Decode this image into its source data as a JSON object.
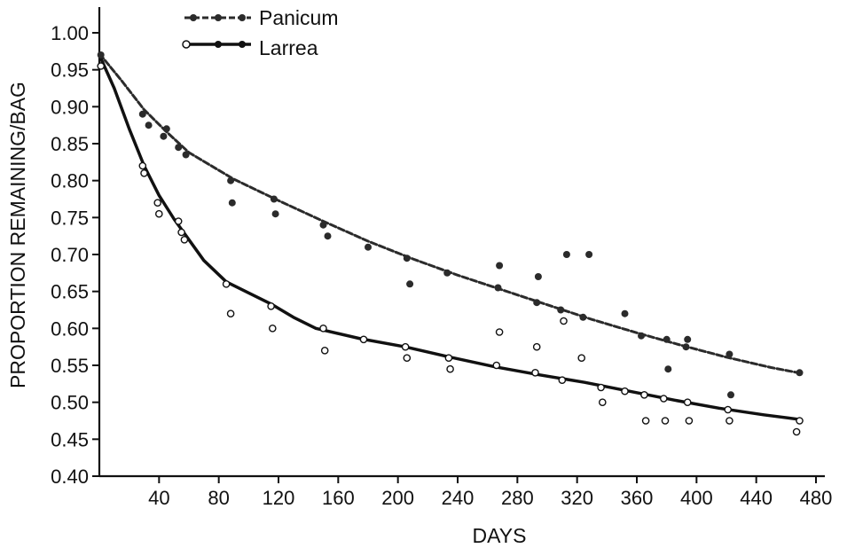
{
  "chart_data": {
    "type": "scatter",
    "title": "",
    "xlabel": "DAYS",
    "ylabel": "PROPORTION REMAINING/BAG",
    "xlim": [
      0,
      480
    ],
    "ylim": [
      0.4,
      1.0
    ],
    "x_ticks": [
      40,
      80,
      120,
      160,
      200,
      240,
      280,
      320,
      360,
      400,
      440,
      480
    ],
    "y_ticks": [
      0.4,
      0.45,
      0.5,
      0.55,
      0.6,
      0.65,
      0.7,
      0.75,
      0.8,
      0.85,
      0.9,
      0.95,
      1.0
    ],
    "y_tick_labels": [
      "0.40",
      "0.45",
      "0.50",
      "0.55",
      "0.60",
      "0.65",
      "0.70",
      "0.75",
      "0.80",
      "0.85",
      "0.90",
      "0.95",
      "1.00"
    ],
    "grid": false,
    "legend_position": "top-left",
    "series": [
      {
        "name": "Panicum",
        "line_style": "dashed",
        "color": "#2b2b2b",
        "marker": "filled-circle",
        "fit_x": [
          0,
          15,
          30,
          45,
          60,
          90,
          120,
          150,
          180,
          210,
          240,
          270,
          300,
          330,
          360,
          390,
          420,
          450,
          468
        ],
        "fit_y": [
          0.972,
          0.935,
          0.896,
          0.866,
          0.838,
          0.802,
          0.773,
          0.745,
          0.718,
          0.694,
          0.672,
          0.652,
          0.632,
          0.612,
          0.594,
          0.577,
          0.561,
          0.547,
          0.54
        ],
        "points": [
          {
            "x": 1,
            "y": 0.97
          },
          {
            "x": 29,
            "y": 0.89
          },
          {
            "x": 33,
            "y": 0.875
          },
          {
            "x": 43,
            "y": 0.86
          },
          {
            "x": 45,
            "y": 0.87
          },
          {
            "x": 53,
            "y": 0.845
          },
          {
            "x": 58,
            "y": 0.835
          },
          {
            "x": 88,
            "y": 0.8
          },
          {
            "x": 89,
            "y": 0.77
          },
          {
            "x": 117,
            "y": 0.775
          },
          {
            "x": 118,
            "y": 0.755
          },
          {
            "x": 150,
            "y": 0.74
          },
          {
            "x": 153,
            "y": 0.725
          },
          {
            "x": 180,
            "y": 0.71
          },
          {
            "x": 206,
            "y": 0.695
          },
          {
            "x": 208,
            "y": 0.66
          },
          {
            "x": 233,
            "y": 0.675
          },
          {
            "x": 267,
            "y": 0.655
          },
          {
            "x": 268,
            "y": 0.685
          },
          {
            "x": 293,
            "y": 0.635
          },
          {
            "x": 294,
            "y": 0.67
          },
          {
            "x": 309,
            "y": 0.625
          },
          {
            "x": 313,
            "y": 0.7
          },
          {
            "x": 324,
            "y": 0.615
          },
          {
            "x": 328,
            "y": 0.7
          },
          {
            "x": 352,
            "y": 0.62
          },
          {
            "x": 363,
            "y": 0.59
          },
          {
            "x": 380,
            "y": 0.585
          },
          {
            "x": 381,
            "y": 0.545
          },
          {
            "x": 393,
            "y": 0.575
          },
          {
            "x": 394,
            "y": 0.585
          },
          {
            "x": 422,
            "y": 0.565
          },
          {
            "x": 423,
            "y": 0.51
          },
          {
            "x": 469,
            "y": 0.54
          }
        ]
      },
      {
        "name": "Larrea",
        "line_style": "solid",
        "color": "#111111",
        "marker": "open-circle",
        "fit_x": [
          0,
          10,
          20,
          30,
          40,
          50,
          60,
          70,
          85,
          100,
          115,
          130,
          145,
          175,
          205,
          235,
          265,
          295,
          325,
          355,
          385,
          415,
          445,
          468
        ],
        "fit_y": [
          0.97,
          0.925,
          0.87,
          0.82,
          0.78,
          0.748,
          0.72,
          0.692,
          0.663,
          0.648,
          0.633,
          0.615,
          0.6,
          0.586,
          0.575,
          0.561,
          0.548,
          0.537,
          0.527,
          0.515,
          0.503,
          0.492,
          0.483,
          0.477
        ],
        "points": [
          {
            "x": 1,
            "y": 0.955
          },
          {
            "x": 29,
            "y": 0.82
          },
          {
            "x": 30,
            "y": 0.81
          },
          {
            "x": 39,
            "y": 0.77
          },
          {
            "x": 40,
            "y": 0.755
          },
          {
            "x": 53,
            "y": 0.745
          },
          {
            "x": 55,
            "y": 0.73
          },
          {
            "x": 57,
            "y": 0.72
          },
          {
            "x": 85,
            "y": 0.66
          },
          {
            "x": 88,
            "y": 0.62
          },
          {
            "x": 115,
            "y": 0.63
          },
          {
            "x": 116,
            "y": 0.6
          },
          {
            "x": 150,
            "y": 0.6
          },
          {
            "x": 151,
            "y": 0.57
          },
          {
            "x": 177,
            "y": 0.585
          },
          {
            "x": 205,
            "y": 0.575
          },
          {
            "x": 206,
            "y": 0.56
          },
          {
            "x": 234,
            "y": 0.56
          },
          {
            "x": 235,
            "y": 0.545
          },
          {
            "x": 266,
            "y": 0.55
          },
          {
            "x": 268,
            "y": 0.595
          },
          {
            "x": 292,
            "y": 0.54
          },
          {
            "x": 293,
            "y": 0.575
          },
          {
            "x": 310,
            "y": 0.53
          },
          {
            "x": 311,
            "y": 0.61
          },
          {
            "x": 323,
            "y": 0.56
          },
          {
            "x": 336,
            "y": 0.52
          },
          {
            "x": 337,
            "y": 0.5
          },
          {
            "x": 352,
            "y": 0.515
          },
          {
            "x": 365,
            "y": 0.51
          },
          {
            "x": 366,
            "y": 0.475
          },
          {
            "x": 378,
            "y": 0.505
          },
          {
            "x": 379,
            "y": 0.475
          },
          {
            "x": 394,
            "y": 0.5
          },
          {
            "x": 395,
            "y": 0.475
          },
          {
            "x": 421,
            "y": 0.49
          },
          {
            "x": 422,
            "y": 0.475
          },
          {
            "x": 467,
            "y": 0.46
          },
          {
            "x": 469,
            "y": 0.475
          }
        ]
      }
    ]
  }
}
